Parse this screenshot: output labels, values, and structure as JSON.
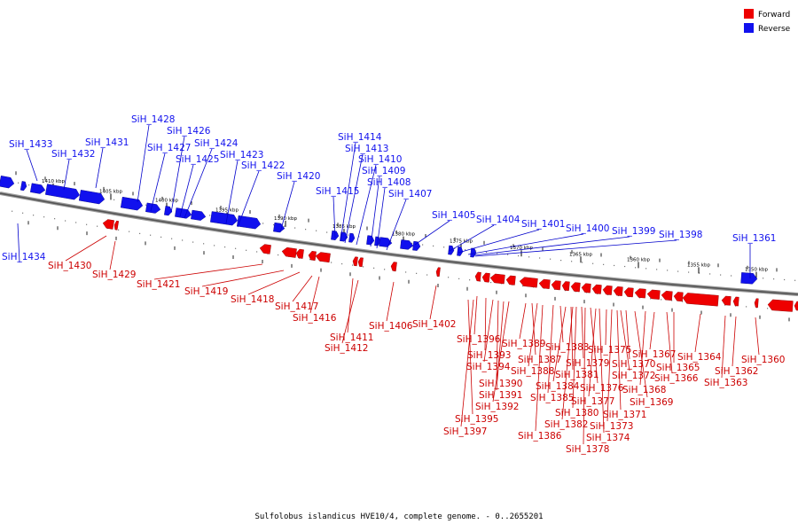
{
  "colors": {
    "forward": "#ee0000",
    "reverse": "#1111ee",
    "axis": "#888888",
    "leader_forward": "#cc0000",
    "leader_reverse": "#0000cc"
  },
  "legend": [
    {
      "label": "Forward",
      "color": "#ee0000"
    },
    {
      "label": "Reverse",
      "color": "#1111ee"
    }
  ],
  "caption": "Sulfolobus islandicus HVE10/4, complete genome. - 0..2655201",
  "ticks": [
    "1410 kbp",
    "1405 kbp",
    "1400 kbp",
    "1395 kbp",
    "1390 kbp",
    "1385 kbp",
    "1380 kbp",
    "1375 kbp",
    "1370 kbp",
    "1365 kbp",
    "1360 kbp",
    "1355 kbp",
    "1350 kbp"
  ],
  "reverse_labels": [
    "SiH_1433",
    "SiH_1432",
    "SiH_1431",
    "SiH_1428",
    "SiH_1427",
    "SiH_1426",
    "SiH_1425",
    "SiH_1424",
    "SiH_1423",
    "SiH_1422",
    "SiH_1420",
    "SiH_1414",
    "SiH_1413",
    "SiH_1410",
    "SiH_1409",
    "SiH_1408",
    "SiH_1407",
    "SiH_1415",
    "SiH_1405",
    "SiH_1404",
    "SiH_1401",
    "SiH_1400",
    "SiH_1399",
    "SiH_1398",
    "SiH_1361",
    "SiH_1434"
  ],
  "forward_labels": [
    "SiH_1430",
    "SiH_1429",
    "SiH_1421",
    "SiH_1419",
    "SiH_1418",
    "SiH_1417",
    "SiH_1416",
    "SiH_1411",
    "SiH_1412",
    "SiH_1406",
    "SiH_1402",
    "SiH_1396",
    "SiH_1393",
    "SiH_1394",
    "SiH_1390",
    "SiH_1391",
    "SiH_1392",
    "SiH_1395",
    "SiH_1397",
    "SiH_1389",
    "SiH_1387",
    "SiH_1388",
    "SiH_1385",
    "SiH_1386",
    "SiH_1383",
    "SiH_1381",
    "SiH_1384",
    "SiH_1379",
    "SiH_1380",
    "SiH_1382",
    "SiH_1378",
    "SiH_1377",
    "SiH_1376",
    "SiH_1375",
    "SiH_1374",
    "SiH_1373",
    "SiH_1372",
    "SiH_1371",
    "SiH_1370",
    "SiH_1369",
    "SiH_1368",
    "SiH_1367",
    "SiH_1366",
    "SiH_1365",
    "SiH_1364",
    "SiH_1363",
    "SiH_1362",
    "SiH_1360"
  ]
}
